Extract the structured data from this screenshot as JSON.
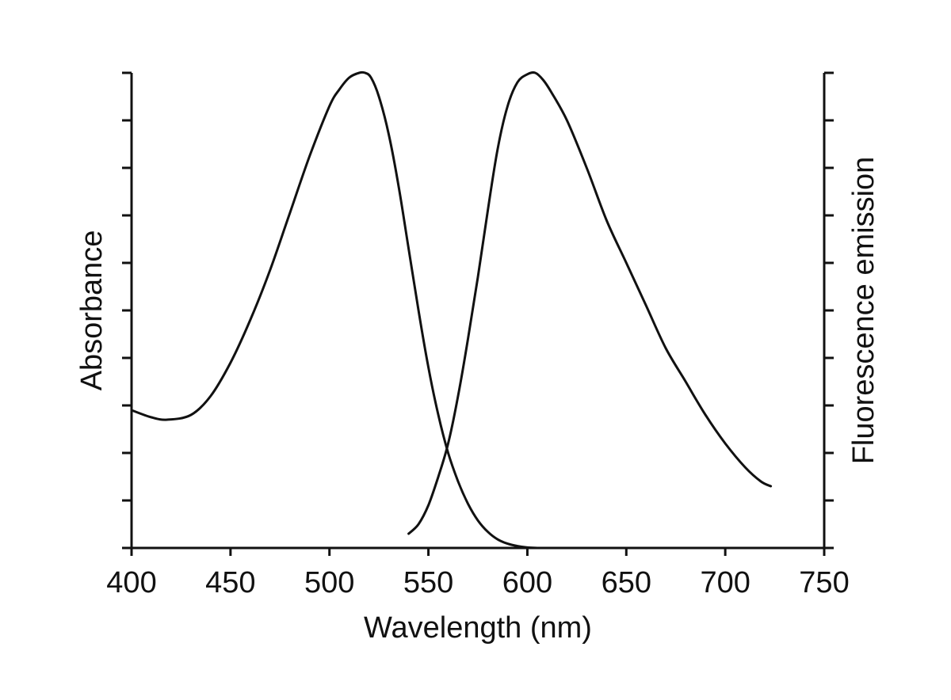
{
  "chart_data": {
    "type": "line",
    "title": "",
    "xlabel": "Wavelength (nm)",
    "ylabel": "Absorbance",
    "y2label": "Fluorescence emission",
    "xlim": [
      400,
      750
    ],
    "ylim": [
      0,
      1
    ],
    "x_ticks": [
      "400",
      "450",
      "500",
      "550",
      "600",
      "650",
      "700",
      "750"
    ],
    "y_tick_count": 11,
    "grid": false,
    "legend": "none",
    "colors": {
      "line": "#111111",
      "axis": "#111111"
    },
    "series": [
      {
        "axis": "left",
        "x": [
          400,
          410,
          418,
          430,
          440,
          450,
          460,
          470,
          480,
          490,
          500,
          505,
          510,
          515,
          518,
          521,
          525,
          530,
          535,
          540,
          545,
          550,
          555,
          560,
          565,
          570,
          575,
          580,
          585,
          590,
          595,
          600,
          605
        ],
        "y": [
          0.29,
          0.275,
          0.27,
          0.28,
          0.32,
          0.39,
          0.48,
          0.585,
          0.705,
          0.825,
          0.93,
          0.965,
          0.99,
          1.0,
          1.0,
          0.99,
          0.95,
          0.87,
          0.76,
          0.63,
          0.5,
          0.38,
          0.28,
          0.2,
          0.14,
          0.093,
          0.058,
          0.034,
          0.018,
          0.009,
          0.004,
          0.001,
          0.0
        ]
      },
      {
        "axis": "right",
        "x": [
          540,
          545,
          550,
          555,
          560,
          565,
          570,
          575,
          580,
          585,
          590,
          595,
          600,
          604,
          608,
          612,
          620,
          630,
          640,
          650,
          660,
          670,
          680,
          690,
          700,
          710,
          718,
          723
        ],
        "y": [
          0.03,
          0.05,
          0.09,
          0.15,
          0.22,
          0.32,
          0.44,
          0.57,
          0.71,
          0.84,
          0.93,
          0.98,
          0.997,
          1.0,
          0.985,
          0.96,
          0.9,
          0.8,
          0.69,
          0.6,
          0.51,
          0.42,
          0.35,
          0.28,
          0.22,
          0.17,
          0.14,
          0.13
        ]
      }
    ]
  }
}
